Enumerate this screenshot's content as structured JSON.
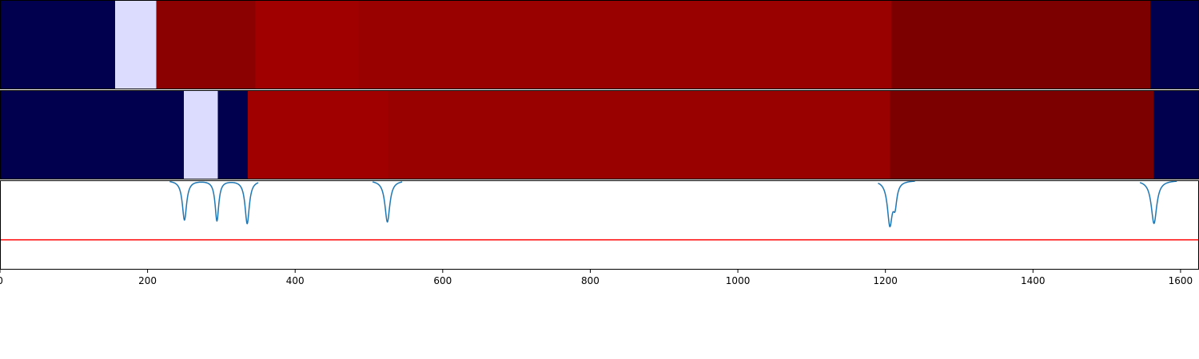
{
  "chart_data": [
    {
      "type": "heatmap",
      "xlim": [
        0,
        1625
      ],
      "segments": [
        {
          "start": 0,
          "end": 156,
          "color": "#00004f"
        },
        {
          "start": 156,
          "end": 212,
          "color": "#dcdcff"
        },
        {
          "start": 212,
          "end": 346,
          "color": "#8b0000"
        },
        {
          "start": 346,
          "end": 486,
          "color": "#a00000"
        },
        {
          "start": 486,
          "end": 1208,
          "color": "#990000"
        },
        {
          "start": 1208,
          "end": 1559,
          "color": "#7d0000"
        },
        {
          "start": 1559,
          "end": 1625,
          "color": "#00004f"
        }
      ]
    },
    {
      "type": "heatmap",
      "xlim": [
        0,
        1625
      ],
      "segments": [
        {
          "start": 0,
          "end": 249,
          "color": "#00004f"
        },
        {
          "start": 249,
          "end": 295,
          "color": "#dcdcff"
        },
        {
          "start": 295,
          "end": 336,
          "color": "#00004f"
        },
        {
          "start": 336,
          "end": 526,
          "color": "#a00000"
        },
        {
          "start": 526,
          "end": 1206,
          "color": "#990000"
        },
        {
          "start": 1206,
          "end": 1564,
          "color": "#7d0000"
        },
        {
          "start": 1564,
          "end": 1625,
          "color": "#00004f"
        }
      ]
    },
    {
      "type": "line",
      "xlim": [
        0,
        1625
      ],
      "ylim": [
        -0.3,
        0.0
      ],
      "threshold": -0.2,
      "line_color": "#1f77b4",
      "threshold_color": "#ff0000",
      "ticks": [
        "0",
        "200",
        "400",
        "600",
        "800",
        "1000",
        "1200",
        "1400",
        "1600"
      ],
      "tick_values": [
        0,
        200,
        400,
        600,
        800,
        1000,
        1200,
        1400,
        1600
      ],
      "peaks": [
        {
          "x": 250,
          "depth": 0.133,
          "width": 3.5
        },
        {
          "x": 294,
          "depth": 0.135,
          "width": 3.0
        },
        {
          "x": 335,
          "depth": 0.145,
          "width": 3.5
        },
        {
          "x": 525,
          "depth": 0.14,
          "width": 4.0
        },
        {
          "x": 1206,
          "depth": 0.145,
          "width": 4.0
        },
        {
          "x": 1213,
          "depth": 0.07,
          "width": 3.0
        },
        {
          "x": 1564,
          "depth": 0.145,
          "width": 4.5
        }
      ]
    }
  ]
}
